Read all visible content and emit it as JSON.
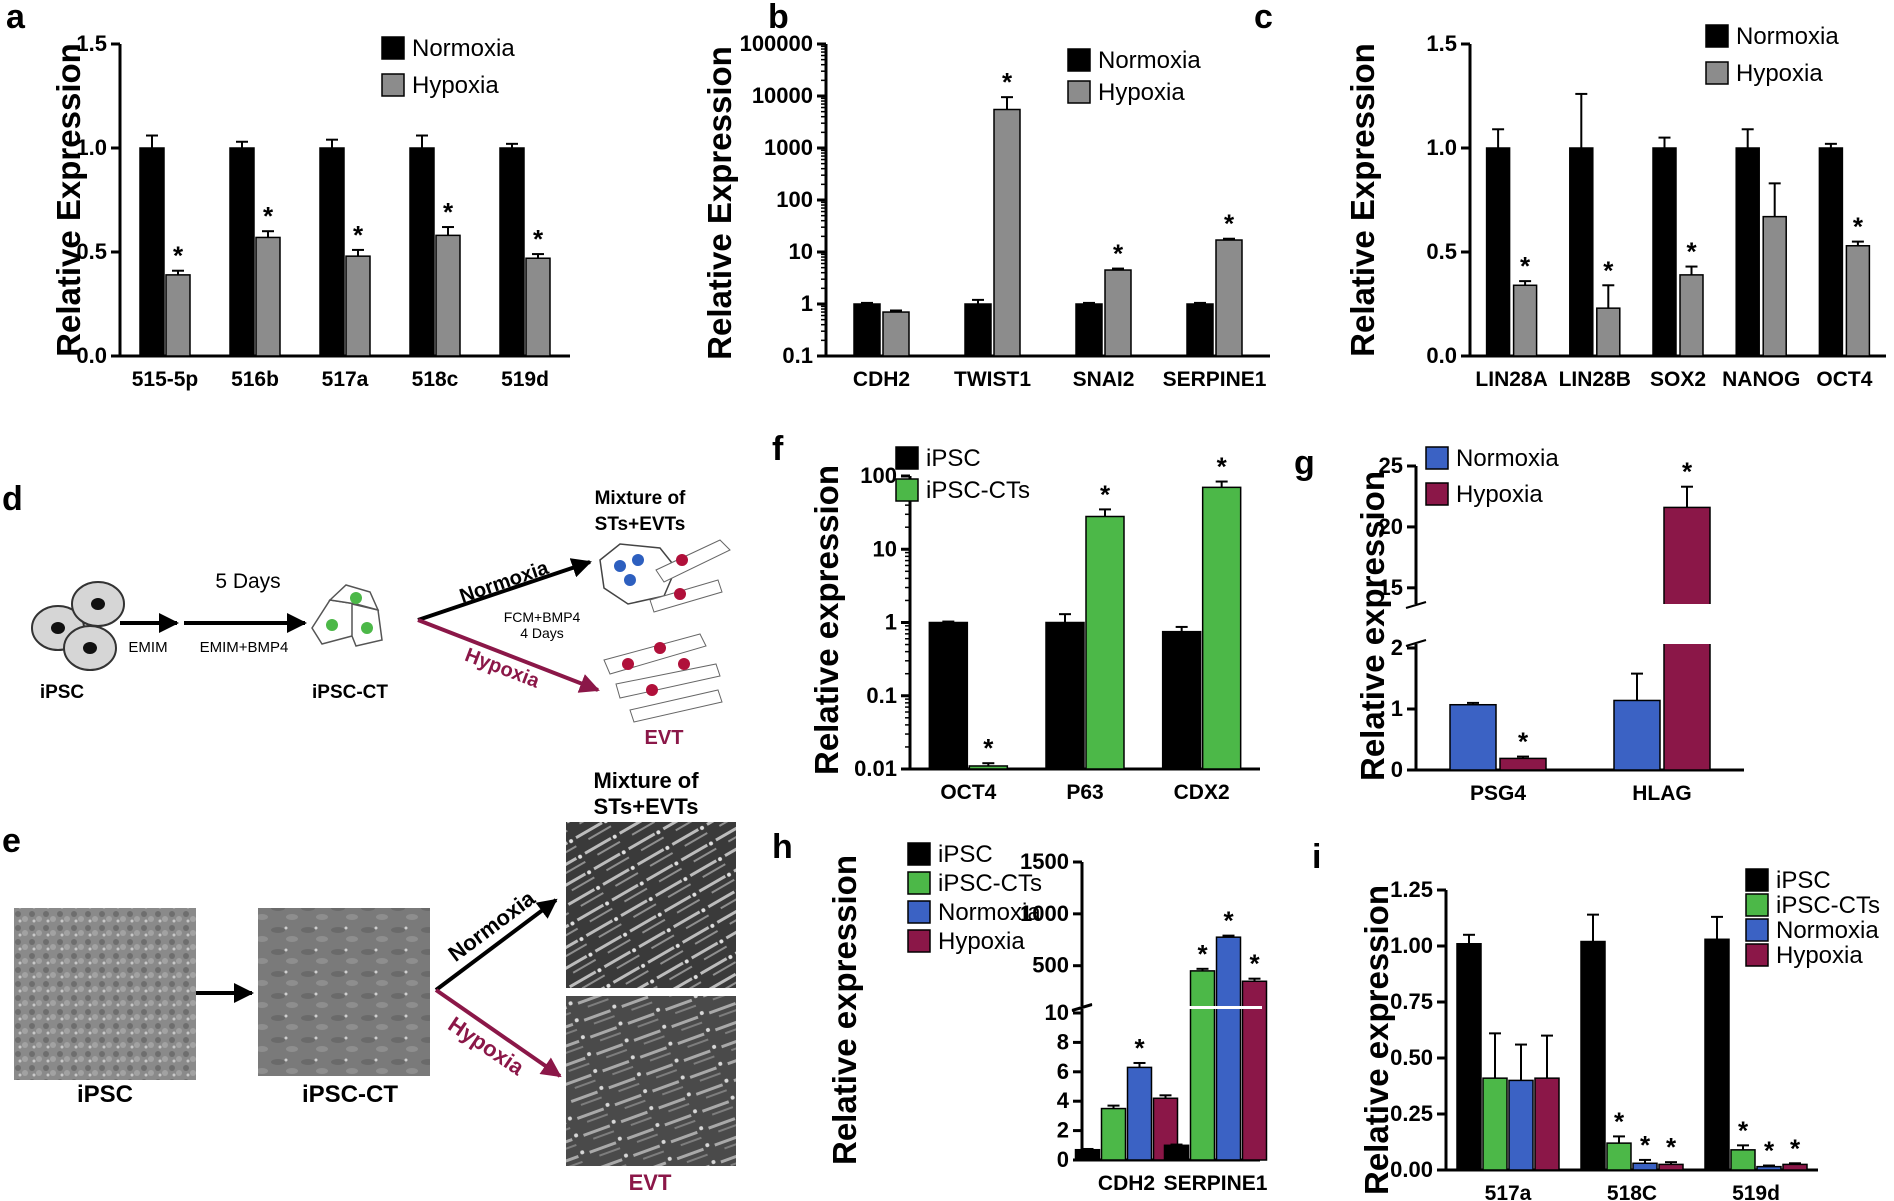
{
  "colors": {
    "normoxia": "#000000",
    "hypoxia_gray": "#8c8c8c",
    "ipsc": "#000000",
    "ipsc_cts": "#4cb848",
    "normoxia_blue": "#3b62c4",
    "hypoxia_red": "#8b1748",
    "hypoxia_arrow": "#8b1748"
  },
  "panel_labels": {
    "a": "a",
    "b": "b",
    "c": "c",
    "d": "d",
    "e": "e",
    "f": "f",
    "g": "g",
    "h": "h",
    "i": "i"
  },
  "chart_data": [
    {
      "id": "a",
      "type": "bar",
      "scale": "linear",
      "ylabel": "Relative Expression",
      "yticks": [
        "0.0",
        "0.5",
        "1.0",
        "1.5"
      ],
      "ylim": [
        0,
        1.5
      ],
      "categories": [
        "515-5p",
        "516b",
        "517a",
        "518c",
        "519d"
      ],
      "series": [
        {
          "name": "Normoxia",
          "values": [
            1.0,
            1.0,
            1.0,
            1.0,
            1.0
          ],
          "errors": [
            0.06,
            0.03,
            0.04,
            0.06,
            0.02
          ],
          "stars": [
            "",
            "",
            "",
            "",
            ""
          ]
        },
        {
          "name": "Hypoxia",
          "values": [
            0.39,
            0.57,
            0.48,
            0.58,
            0.47
          ],
          "errors": [
            0.02,
            0.03,
            0.03,
            0.04,
            0.02
          ],
          "stars": [
            "*",
            "*",
            "*",
            "*",
            "*"
          ]
        }
      ]
    },
    {
      "id": "b",
      "type": "bar",
      "scale": "log",
      "ylabel": "Relative Expression",
      "yticks": [
        "0.1",
        "1",
        "10",
        "100",
        "1000",
        "10000",
        "100000"
      ],
      "ylim": [
        0.1,
        100000
      ],
      "categories": [
        "CDH2",
        "TWIST1",
        "SNAI2",
        "SERPINE1"
      ],
      "series": [
        {
          "name": "Normoxia",
          "values": [
            1.0,
            1.0,
            1.0,
            1.0
          ],
          "errors": [
            0.05,
            0.2,
            0.05,
            0.05
          ],
          "stars": [
            "",
            "",
            "",
            ""
          ]
        },
        {
          "name": "Hypoxia",
          "values": [
            0.7,
            5500,
            4.5,
            17
          ],
          "errors": [
            0.05,
            4000,
            0.3,
            1
          ],
          "stars": [
            "",
            "*",
            "*",
            "*"
          ]
        }
      ]
    },
    {
      "id": "c",
      "type": "bar",
      "scale": "linear",
      "ylabel": "Relative Expression",
      "yticks": [
        "0.0",
        "0.5",
        "1.0",
        "1.5"
      ],
      "ylim": [
        0,
        1.5
      ],
      "categories": [
        "LIN28A",
        "LIN28B",
        "SOX2",
        "NANOG",
        "OCT4"
      ],
      "series": [
        {
          "name": "Normoxia",
          "values": [
            1.0,
            1.0,
            1.0,
            1.0,
            1.0
          ],
          "errors": [
            0.09,
            0.26,
            0.05,
            0.09,
            0.02
          ],
          "stars": [
            "",
            "",
            "",
            "",
            ""
          ]
        },
        {
          "name": "Hypoxia",
          "values": [
            0.34,
            0.23,
            0.39,
            0.67,
            0.53
          ],
          "errors": [
            0.02,
            0.11,
            0.04,
            0.16,
            0.02
          ],
          "stars": [
            "*",
            "*",
            "*",
            "",
            "*"
          ]
        }
      ]
    },
    {
      "id": "f",
      "type": "bar",
      "scale": "log",
      "ylabel": "Relative expression",
      "yticks": [
        "0.01",
        "0.1",
        "1",
        "10",
        "100"
      ],
      "ylim": [
        0.01,
        100
      ],
      "categories": [
        "OCT4",
        "P63",
        "CDX2"
      ],
      "series": [
        {
          "name": "iPSC",
          "values": [
            1.0,
            1.0,
            0.75
          ],
          "errors": [
            0.03,
            0.3,
            0.12
          ],
          "stars": [
            "",
            "",
            ""
          ]
        },
        {
          "name": "iPSC-CTs",
          "values": [
            0.011,
            28,
            70
          ],
          "errors": [
            0.001,
            7,
            14
          ],
          "stars": [
            "*",
            "*",
            "*"
          ]
        }
      ]
    },
    {
      "id": "g",
      "type": "bar",
      "scale": "broken",
      "ylabel": "Relative expression",
      "yticks_lower": [
        "0",
        "1",
        "2"
      ],
      "yticks_upper": [
        "15",
        "20",
        "25"
      ],
      "ylim_lower": [
        0,
        2
      ],
      "ylim_upper": [
        14,
        25
      ],
      "categories": [
        "PSG4",
        "HLAG"
      ],
      "series": [
        {
          "name": "Normoxia",
          "values": [
            1.07,
            1.14
          ],
          "errors": [
            0.03,
            0.44
          ],
          "stars": [
            "",
            ""
          ]
        },
        {
          "name": "Hypoxia",
          "values": [
            0.19,
            21.6
          ],
          "errors": [
            0.03,
            1.7
          ],
          "stars": [
            "*",
            "*"
          ]
        }
      ]
    },
    {
      "id": "h",
      "type": "bar",
      "scale": "broken",
      "ylabel": "Relative expression",
      "yticks_lower": [
        "0",
        "2",
        "4",
        "6",
        "8",
        "10"
      ],
      "yticks_upper": [
        "500",
        "1000",
        "1500"
      ],
      "ylim_lower": [
        0,
        10
      ],
      "ylim_upper": [
        150,
        1500
      ],
      "categories": [
        "CDH2",
        "SERPINE1"
      ],
      "series": [
        {
          "name": "iPSC",
          "values": [
            0.7,
            1.0
          ],
          "errors": [
            0.05,
            0.05
          ],
          "stars": [
            "",
            ""
          ]
        },
        {
          "name": "iPSC-CTs",
          "values": [
            3.5,
            450
          ],
          "errors": [
            0.2,
            20
          ],
          "stars": [
            "",
            "*"
          ]
        },
        {
          "name": "Normoxia",
          "values": [
            6.3,
            775
          ],
          "errors": [
            0.3,
            15
          ],
          "stars": [
            "*",
            "*"
          ]
        },
        {
          "name": "Hypoxia",
          "values": [
            4.2,
            350
          ],
          "errors": [
            0.2,
            25
          ],
          "stars": [
            "",
            "*"
          ]
        }
      ]
    },
    {
      "id": "i",
      "type": "bar",
      "scale": "linear",
      "ylabel": "Relative expression",
      "yticks": [
        "0.00",
        "0.25",
        "0.50",
        "0.75",
        "1.00",
        "1.25"
      ],
      "ylim": [
        0,
        1.25
      ],
      "categories": [
        "517a",
        "518C",
        "519d"
      ],
      "series": [
        {
          "name": "iPSC",
          "values": [
            1.01,
            1.02,
            1.03
          ],
          "errors": [
            0.04,
            0.12,
            0.1
          ],
          "stars": [
            "",
            "",
            ""
          ]
        },
        {
          "name": "iPSC-CTs",
          "values": [
            0.41,
            0.12,
            0.09
          ],
          "errors": [
            0.2,
            0.03,
            0.02
          ],
          "stars": [
            "",
            "*",
            "*"
          ]
        },
        {
          "name": "Normoxia",
          "values": [
            0.4,
            0.03,
            0.015
          ],
          "errors": [
            0.16,
            0.015,
            0.005
          ],
          "stars": [
            "",
            "*",
            "*"
          ]
        },
        {
          "name": "Hypoxia",
          "values": [
            0.41,
            0.025,
            0.025
          ],
          "errors": [
            0.19,
            0.01,
            0.005
          ],
          "stars": [
            "",
            "*",
            "*"
          ]
        }
      ]
    }
  ],
  "diagram_d": {
    "ipsc": "iPSC",
    "emim": "EMIM",
    "five_days": "5 Days",
    "emim_bmp4": "EMIM+BMP4",
    "ipsc_ct": "iPSC-CT",
    "normoxia": "Normoxia",
    "hypoxia": "Hypoxia",
    "fcm_line1": "FCM+BMP4",
    "fcm_line2": "4 Days",
    "mixture_line1": "Mixture of",
    "mixture_line2": "STs+EVTs",
    "evt": "EVT"
  },
  "panel_e": {
    "ipsc": "iPSC",
    "ipsc_ct": "iPSC-CT",
    "normoxia": "Normoxia",
    "hypoxia": "Hypoxia",
    "mixture_line1": "Mixture of",
    "mixture_line2": "STs+EVTs",
    "evt": "EVT"
  }
}
